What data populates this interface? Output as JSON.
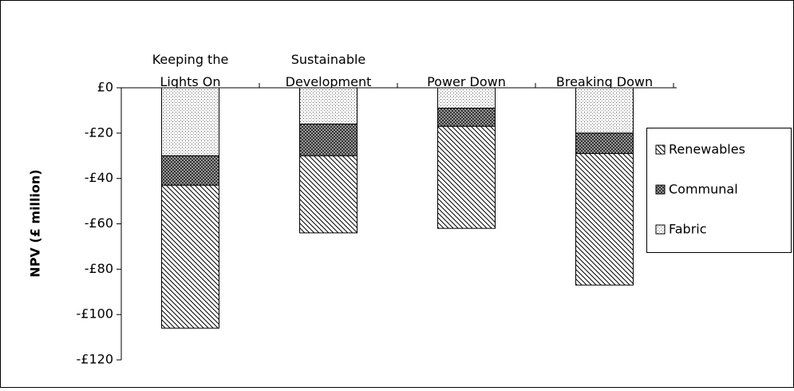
{
  "chart_data": {
    "type": "bar",
    "stacked": true,
    "categories": [
      "Keeping the Lights On",
      "Sustainable Development",
      "Power Down",
      "Breaking Down"
    ],
    "series": [
      {
        "name": "Renewables",
        "pattern": "stripes",
        "values": [
          -63,
          -34,
          -45,
          -58
        ]
      },
      {
        "name": "Communal",
        "pattern": "crosshatch",
        "values": [
          -13,
          -14,
          -8,
          -9
        ]
      },
      {
        "name": "Fabric",
        "pattern": "dots",
        "values": [
          -30,
          -16,
          -9,
          -20
        ]
      }
    ],
    "ylabel": "NPV  (£ million)",
    "ylim": [
      -120,
      0
    ],
    "yticks": [
      {
        "value": 0,
        "label": "£0"
      },
      {
        "value": -20,
        "label": "-£20"
      },
      {
        "value": -40,
        "label": "-£40"
      },
      {
        "value": -60,
        "label": "-£60"
      },
      {
        "value": -80,
        "label": "-£80"
      },
      {
        "value": -100,
        "label": "-£100"
      },
      {
        "value": -120,
        "label": "-£120"
      }
    ],
    "grid": false,
    "legend": "right"
  }
}
